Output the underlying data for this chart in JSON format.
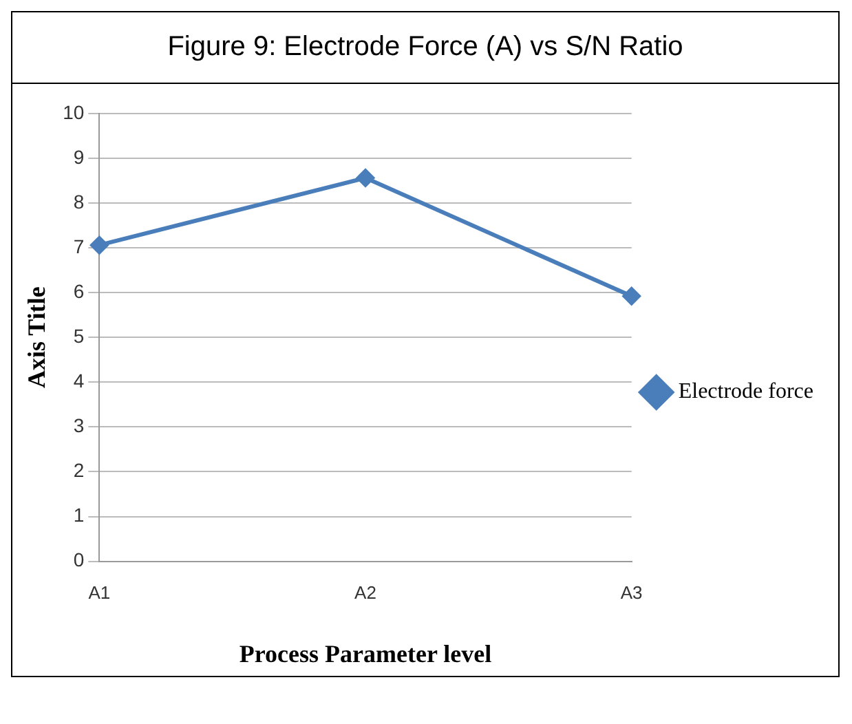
{
  "chart_data": {
    "type": "line",
    "title": "Figure 9: Electrode Force (A) vs S/N Ratio",
    "xlabel": "Process Parameter level",
    "ylabel": "Axis Title",
    "categories": [
      "A1",
      "A2",
      "A3"
    ],
    "series": [
      {
        "name": "Electrode force",
        "color": "#4a7ebb",
        "values": [
          7.06,
          8.56,
          5.92
        ]
      }
    ],
    "ylim": [
      0,
      10
    ],
    "yticks": [
      0,
      1,
      2,
      3,
      4,
      5,
      6,
      7,
      8,
      9,
      10
    ],
    "grid": "y",
    "legend": "right",
    "marker": "diamond",
    "line_style": "solid"
  }
}
